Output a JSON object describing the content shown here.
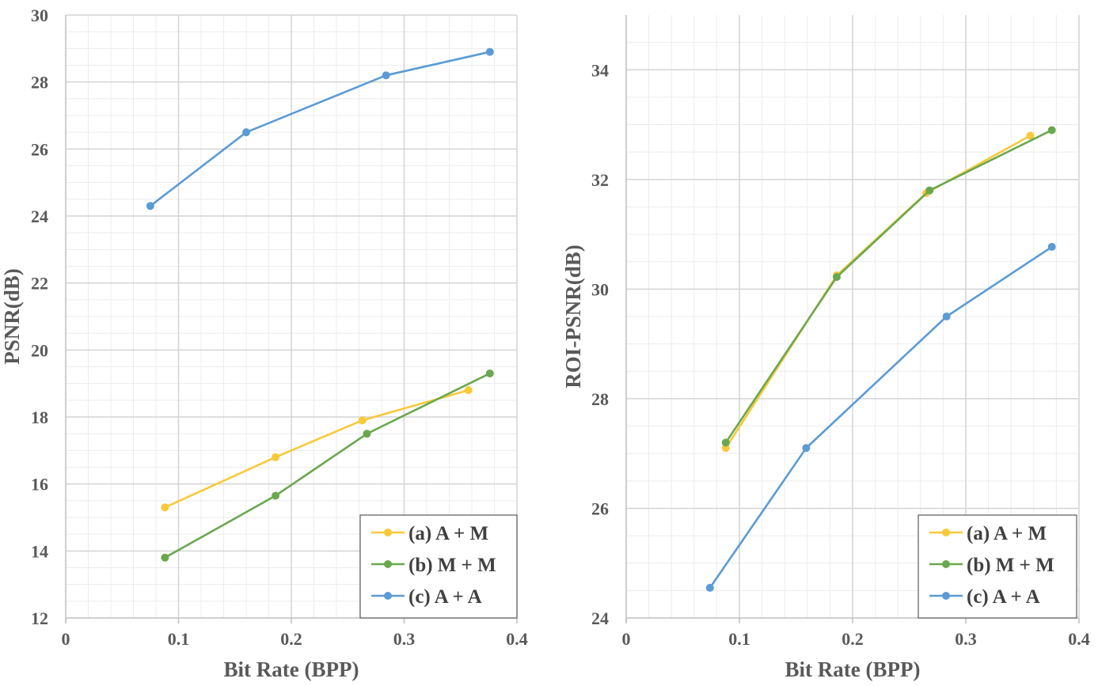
{
  "chart_data": [
    {
      "type": "line",
      "xlabel": "Bit Rate (BPP)",
      "ylabel": "PSNR(dB)",
      "xlim": [
        0,
        0.4
      ],
      "ylim": [
        12,
        30
      ],
      "xticks": [
        0,
        0.1,
        0.2,
        0.3,
        0.4
      ],
      "xtick_labels": [
        "0",
        "0.1",
        "0.2",
        "0.3",
        "0.4"
      ],
      "yticks": [
        12,
        14,
        16,
        18,
        20,
        22,
        24,
        26,
        28,
        30
      ],
      "ytick_labels": [
        "12",
        "14",
        "16",
        "18",
        "20",
        "22",
        "24",
        "26",
        "28",
        "30"
      ],
      "grid": true,
      "legend_position": "bottom-right",
      "series": [
        {
          "name": "(a) A + M",
          "color": "#F8C93A",
          "x": [
            0.088,
            0.186,
            0.263,
            0.357
          ],
          "y": [
            15.3,
            16.8,
            17.9,
            18.8
          ]
        },
        {
          "name": "(b) M + M",
          "color": "#6AA84F",
          "x": [
            0.088,
            0.186,
            0.267,
            0.376
          ],
          "y": [
            13.8,
            15.65,
            17.5,
            19.3
          ]
        },
        {
          "name": "(c)  A + A",
          "color": "#5B9BD5",
          "x": [
            0.075,
            0.16,
            0.284,
            0.376
          ],
          "y": [
            24.3,
            26.5,
            28.2,
            28.9
          ]
        }
      ]
    },
    {
      "type": "line",
      "xlabel": "Bit Rate (BPP)",
      "ylabel": "ROI-PSNR(dB)",
      "xlim": [
        0,
        0.4
      ],
      "ylim": [
        24,
        35
      ],
      "xticks": [
        0,
        0.1,
        0.2,
        0.3,
        0.4
      ],
      "xtick_labels": [
        "0",
        "0.1",
        "0.2",
        "0.3",
        "0.4"
      ],
      "yticks": [
        24,
        26,
        28,
        30,
        32,
        34
      ],
      "ytick_labels": [
        "24",
        "26",
        "28",
        "30",
        "32",
        "34"
      ],
      "grid": true,
      "legend_position": "bottom-right",
      "series": [
        {
          "name": "(a) A + M",
          "color": "#F8C93A",
          "x": [
            0.088,
            0.186,
            0.265,
            0.357
          ],
          "y": [
            27.1,
            30.25,
            31.75,
            32.8
          ]
        },
        {
          "name": "(b) M + M",
          "color": "#6AA84F",
          "x": [
            0.088,
            0.186,
            0.268,
            0.376
          ],
          "y": [
            27.2,
            30.22,
            31.8,
            32.9
          ]
        },
        {
          "name": "(c) A + A",
          "color": "#5B9BD5",
          "x": [
            0.074,
            0.159,
            0.283,
            0.376
          ],
          "y": [
            24.55,
            27.1,
            29.5,
            30.77
          ]
        }
      ]
    }
  ]
}
